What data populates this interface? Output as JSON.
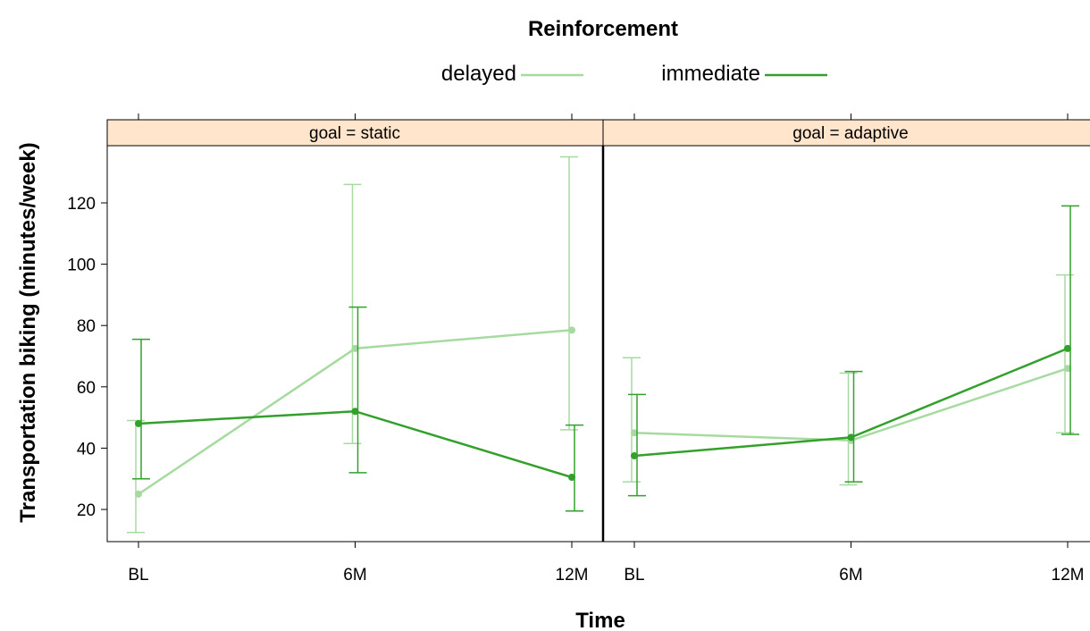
{
  "chart_data": {
    "type": "line",
    "legend": {
      "title": "Reinforcement",
      "placement": "top",
      "entries": [
        {
          "name": "delayed",
          "color": "#a6dba0"
        },
        {
          "name": "immediate",
          "color": "#33a02c"
        }
      ]
    },
    "xlabel": "Time",
    "ylabel": "Transportation biking (minutes/week)",
    "categories": [
      "BL",
      "6M",
      "12M"
    ],
    "yticks": [
      20,
      40,
      60,
      80,
      100,
      120
    ],
    "ylim": [
      10,
      139
    ],
    "strip_color": "#ffe5cc",
    "panels": [
      {
        "label": "goal = static",
        "series": [
          {
            "name": "delayed",
            "values": [
              25,
              72.5,
              78.5
            ],
            "lower": [
              12.5,
              41.5,
              46
            ],
            "upper": [
              49,
              126,
              135
            ]
          },
          {
            "name": "immediate",
            "values": [
              48,
              52,
              30.5
            ],
            "lower": [
              30,
              32,
              19.5
            ],
            "upper": [
              75.5,
              86,
              47.5
            ]
          }
        ]
      },
      {
        "label": "goal = adaptive",
        "series": [
          {
            "name": "delayed",
            "values": [
              45,
              42.5,
              66
            ],
            "lower": [
              29,
              28,
              45
            ],
            "upper": [
              69.5,
              64.5,
              96.5
            ]
          },
          {
            "name": "immediate",
            "values": [
              37.5,
              43.5,
              72.5
            ],
            "lower": [
              24.5,
              29,
              44.5
            ],
            "upper": [
              57.5,
              65,
              119
            ]
          }
        ]
      }
    ]
  }
}
